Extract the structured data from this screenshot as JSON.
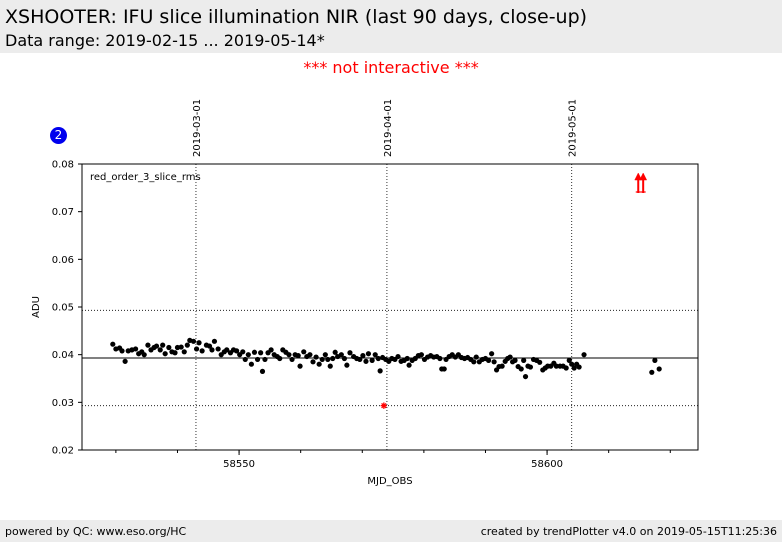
{
  "header": {
    "title": "XSHOOTER: IFU slice illumination NIR (last 90 days, close-up)",
    "subtitle": "Data range: 2019-02-15 ... 2019-05-14*"
  },
  "notice": "*** not interactive ***",
  "badge": "2",
  "footer": {
    "left": "powered by QC: www.eso.org/HC",
    "right": "created by trendPlotter v4.0 on 2019-05-15T11:25:36"
  },
  "colors": {
    "header_bg": "#ececec",
    "notice": "#ff0000",
    "badge": "#0000ee",
    "points": "#000000",
    "outlier": "#ff0000"
  },
  "chart_data": {
    "type": "scatter",
    "title": "red_order_3_slice_rms",
    "xlabel": "MJD_OBS",
    "ylabel": "ADU",
    "xlim": [
      58524.5,
      58624.5
    ],
    "ylim": [
      0.02,
      0.08
    ],
    "x_ticks": [
      58550,
      58600
    ],
    "y_ticks": [
      0.02,
      0.03,
      0.04,
      0.05,
      0.06,
      0.07,
      0.08
    ],
    "y_tick_labels": [
      "0.02",
      "0.03",
      "0.04",
      "0.05",
      "0.06",
      "0.07",
      "0.08"
    ],
    "date_markers": [
      {
        "mjd": 58543.0,
        "label": "2019-03-01"
      },
      {
        "mjd": 58574.0,
        "label": "2019-04-01"
      },
      {
        "mjd": 58604.0,
        "label": "2019-05-01"
      }
    ],
    "reference_line": 0.0393,
    "threshold_lines": [
      0.0293,
      0.0493
    ],
    "grid": "vertical at date markers",
    "points": [
      [
        58529.5,
        0.0422
      ],
      [
        58530.0,
        0.0412
      ],
      [
        58530.6,
        0.0414
      ],
      [
        58531.0,
        0.0408
      ],
      [
        58531.5,
        0.0386
      ],
      [
        58532.0,
        0.0408
      ],
      [
        58532.6,
        0.041
      ],
      [
        58533.2,
        0.0412
      ],
      [
        58533.7,
        0.0402
      ],
      [
        58534.2,
        0.0406
      ],
      [
        58534.6,
        0.04
      ],
      [
        58535.2,
        0.042
      ],
      [
        58535.7,
        0.041
      ],
      [
        58536.2,
        0.0415
      ],
      [
        58536.6,
        0.0418
      ],
      [
        58537.2,
        0.041
      ],
      [
        58537.6,
        0.042
      ],
      [
        58538.0,
        0.0402
      ],
      [
        58538.6,
        0.0415
      ],
      [
        58539.1,
        0.0406
      ],
      [
        58539.6,
        0.0404
      ],
      [
        58540.0,
        0.0415
      ],
      [
        58540.6,
        0.0416
      ],
      [
        58541.1,
        0.0406
      ],
      [
        58541.6,
        0.042
      ],
      [
        58542.0,
        0.043
      ],
      [
        58542.6,
        0.0428
      ],
      [
        58543.1,
        0.0412
      ],
      [
        58543.5,
        0.0425
      ],
      [
        58544.0,
        0.0408
      ],
      [
        58544.7,
        0.042
      ],
      [
        58545.2,
        0.0418
      ],
      [
        58545.6,
        0.041
      ],
      [
        58546.0,
        0.0428
      ],
      [
        58546.6,
        0.0412
      ],
      [
        58547.1,
        0.04
      ],
      [
        58547.6,
        0.0406
      ],
      [
        58548.0,
        0.041
      ],
      [
        58548.6,
        0.0404
      ],
      [
        58549.1,
        0.041
      ],
      [
        58549.6,
        0.0408
      ],
      [
        58550.1,
        0.04
      ],
      [
        58550.6,
        0.0406
      ],
      [
        58551.0,
        0.039
      ],
      [
        58551.5,
        0.04
      ],
      [
        58552.0,
        0.038
      ],
      [
        58552.5,
        0.0405
      ],
      [
        58553.0,
        0.039
      ],
      [
        58553.5,
        0.0404
      ],
      [
        58553.8,
        0.0365
      ],
      [
        58554.2,
        0.039
      ],
      [
        58554.7,
        0.0404
      ],
      [
        58555.2,
        0.041
      ],
      [
        58555.7,
        0.04
      ],
      [
        58556.2,
        0.0396
      ],
      [
        58556.6,
        0.0392
      ],
      [
        58557.1,
        0.041
      ],
      [
        58557.6,
        0.0405
      ],
      [
        58558.1,
        0.04
      ],
      [
        58558.6,
        0.039
      ],
      [
        58559.1,
        0.04
      ],
      [
        58559.6,
        0.0398
      ],
      [
        58559.9,
        0.0376
      ],
      [
        58560.5,
        0.0406
      ],
      [
        58561.0,
        0.0396
      ],
      [
        58561.5,
        0.04
      ],
      [
        58562.0,
        0.0385
      ],
      [
        58562.5,
        0.0395
      ],
      [
        58563.0,
        0.038
      ],
      [
        58563.5,
        0.039
      ],
      [
        58564.0,
        0.04
      ],
      [
        58564.4,
        0.039
      ],
      [
        58564.8,
        0.0376
      ],
      [
        58565.2,
        0.0392
      ],
      [
        58565.6,
        0.0405
      ],
      [
        58566.0,
        0.0396
      ],
      [
        58566.6,
        0.04
      ],
      [
        58567.1,
        0.0392
      ],
      [
        58567.5,
        0.0378
      ],
      [
        58568.0,
        0.0404
      ],
      [
        58568.6,
        0.0396
      ],
      [
        58569.1,
        0.0392
      ],
      [
        58569.6,
        0.039
      ],
      [
        58570.1,
        0.0398
      ],
      [
        58570.6,
        0.0386
      ],
      [
        58571.0,
        0.0402
      ],
      [
        58571.6,
        0.0388
      ],
      [
        58572.1,
        0.04
      ],
      [
        58572.6,
        0.0392
      ],
      [
        58572.9,
        0.0366
      ],
      [
        58573.3,
        0.0394
      ],
      [
        58573.8,
        0.039
      ],
      [
        58574.3,
        0.0386
      ],
      [
        58574.8,
        0.0392
      ],
      [
        58575.3,
        0.039
      ],
      [
        58575.8,
        0.0396
      ],
      [
        58576.3,
        0.0386
      ],
      [
        58576.8,
        0.0388
      ],
      [
        58577.3,
        0.0392
      ],
      [
        58577.6,
        0.0378
      ],
      [
        58578.1,
        0.0388
      ],
      [
        58578.6,
        0.0392
      ],
      [
        58579.1,
        0.0398
      ],
      [
        58579.6,
        0.04
      ],
      [
        58580.1,
        0.039
      ],
      [
        58580.6,
        0.0395
      ],
      [
        58581.1,
        0.0398
      ],
      [
        58581.6,
        0.0395
      ],
      [
        58582.1,
        0.0396
      ],
      [
        58582.6,
        0.0392
      ],
      [
        58582.9,
        0.037
      ],
      [
        58583.3,
        0.037
      ],
      [
        58583.6,
        0.039
      ],
      [
        58584.1,
        0.0396
      ],
      [
        58584.6,
        0.04
      ],
      [
        58585.1,
        0.0395
      ],
      [
        58585.6,
        0.04
      ],
      [
        58586.1,
        0.0394
      ],
      [
        58586.6,
        0.0392
      ],
      [
        58587.1,
        0.0394
      ],
      [
        58587.6,
        0.039
      ],
      [
        58588.1,
        0.0385
      ],
      [
        58588.5,
        0.0395
      ],
      [
        58589.0,
        0.0385
      ],
      [
        58589.5,
        0.039
      ],
      [
        58590.0,
        0.0392
      ],
      [
        58590.5,
        0.0388
      ],
      [
        58591.0,
        0.0402
      ],
      [
        58591.4,
        0.0385
      ],
      [
        58591.8,
        0.0368
      ],
      [
        58592.2,
        0.0375
      ],
      [
        58592.7,
        0.0376
      ],
      [
        58593.2,
        0.0386
      ],
      [
        58593.6,
        0.0392
      ],
      [
        58594.0,
        0.0395
      ],
      [
        58594.4,
        0.0385
      ],
      [
        58594.8,
        0.0388
      ],
      [
        58595.3,
        0.0375
      ],
      [
        58595.8,
        0.037
      ],
      [
        58596.2,
        0.0388
      ],
      [
        58596.5,
        0.0354
      ],
      [
        58596.9,
        0.0376
      ],
      [
        58597.3,
        0.0374
      ],
      [
        58597.8,
        0.039
      ],
      [
        58598.3,
        0.0388
      ],
      [
        58598.8,
        0.0384
      ],
      [
        58599.3,
        0.0368
      ],
      [
        58599.7,
        0.0372
      ],
      [
        58600.1,
        0.0376
      ],
      [
        58600.6,
        0.0376
      ],
      [
        58601.1,
        0.0382
      ],
      [
        58601.5,
        0.0376
      ],
      [
        58602.1,
        0.0376
      ],
      [
        58602.6,
        0.0376
      ],
      [
        58603.1,
        0.0372
      ],
      [
        58603.6,
        0.0388
      ],
      [
        58604.0,
        0.038
      ],
      [
        58604.4,
        0.0372
      ],
      [
        58604.8,
        0.038
      ],
      [
        58605.2,
        0.0374
      ],
      [
        58606.0,
        0.04
      ],
      [
        58617.0,
        0.0363
      ],
      [
        58617.5,
        0.0388
      ],
      [
        58618.2,
        0.037
      ]
    ],
    "outliers": [
      [
        58573.5,
        0.0293
      ]
    ],
    "offscale_markers": [
      58614.8,
      58615.6
    ]
  }
}
